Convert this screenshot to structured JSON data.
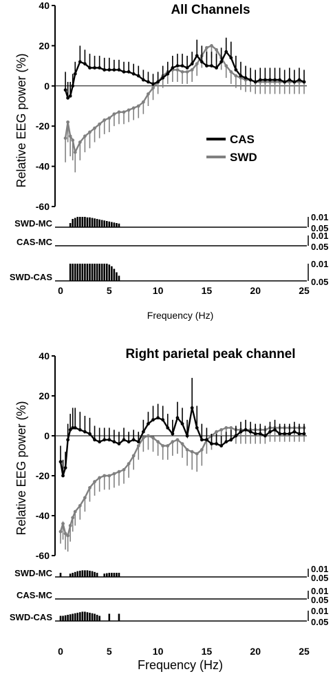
{
  "figure": {
    "background": "#ffffff"
  },
  "chart_data": [
    {
      "type": "line",
      "title": "All Channels",
      "ylabel": "Relative EEG power (%)",
      "xlabel": "Frequency (Hz)",
      "xlim": [
        0,
        25
      ],
      "ylim": [
        -60,
        40
      ],
      "yticks": [
        "40",
        "20",
        "0",
        "-20",
        "-40",
        "-60"
      ],
      "xticks": [
        "0",
        "5",
        "10",
        "15",
        "20",
        "25"
      ],
      "legend": {
        "placement": "center-right",
        "entries": [
          "CAS",
          "SWD"
        ]
      },
      "series": [
        {
          "name": "CAS",
          "color": "#000000",
          "x": [
            0.5,
            0.75,
            1,
            1.25,
            1.5,
            2,
            2.5,
            3,
            3.5,
            4,
            4.5,
            5,
            5.5,
            6,
            6.5,
            7,
            7.5,
            8,
            8.5,
            9,
            9.5,
            10,
            10.5,
            11,
            11.5,
            12,
            12.5,
            13,
            13.5,
            14,
            14.5,
            15,
            15.5,
            16,
            16.5,
            17,
            17.5,
            18,
            18.5,
            19,
            19.5,
            20,
            20.5,
            21,
            21.5,
            22,
            22.5,
            23,
            23.5,
            24,
            24.5,
            25
          ],
          "y": [
            -2,
            -6,
            -5,
            0,
            6,
            12,
            11,
            9,
            9,
            9,
            8,
            8,
            8,
            8,
            7,
            7,
            6,
            5,
            3,
            2,
            1,
            2,
            4,
            6,
            9,
            10,
            10,
            9,
            11,
            15,
            12,
            10,
            10,
            9,
            12,
            17,
            14,
            8,
            5,
            4,
            3,
            2,
            3,
            3,
            3,
            3,
            3,
            2,
            3,
            2,
            3,
            2
          ],
          "err": [
            9,
            8,
            7,
            6,
            6,
            8,
            7,
            7,
            6,
            6,
            6,
            6,
            5,
            5,
            5,
            5,
            5,
            5,
            5,
            5,
            5,
            5,
            6,
            6,
            6,
            6,
            6,
            6,
            6,
            8,
            8,
            7,
            7,
            7,
            7,
            7,
            8,
            7,
            7,
            6,
            6,
            6,
            6,
            6,
            6,
            6,
            6,
            6,
            6,
            6,
            6,
            6
          ]
        },
        {
          "name": "SWD",
          "color": "#808080",
          "x": [
            0.5,
            0.75,
            1,
            1.25,
            1.5,
            2,
            2.5,
            3,
            3.5,
            4,
            4.5,
            5,
            5.5,
            6,
            6.5,
            7,
            7.5,
            8,
            8.5,
            9,
            9.5,
            10,
            10.5,
            11,
            11.5,
            12,
            12.5,
            13,
            13.5,
            14,
            14.5,
            15,
            15.5,
            16,
            16.5,
            17,
            17.5,
            18,
            18.5,
            19,
            19.5,
            20,
            20.5,
            21,
            21.5,
            22,
            22.5,
            23,
            23.5,
            24,
            24.5,
            25
          ],
          "y": [
            -26,
            -18,
            -25,
            -27,
            -33,
            -28,
            -25,
            -23,
            -21,
            -19,
            -17,
            -16,
            -14,
            -13,
            -13,
            -12,
            -11,
            -10,
            -8,
            -4,
            -1,
            2,
            5,
            7,
            8,
            8,
            7,
            7,
            8,
            11,
            15,
            19,
            20,
            18,
            14,
            10,
            7,
            5,
            4,
            3,
            3,
            2,
            2,
            2,
            2,
            2,
            2,
            2,
            2,
            2,
            2,
            2
          ],
          "err": [
            12,
            10,
            10,
            10,
            10,
            9,
            8,
            8,
            7,
            7,
            7,
            7,
            6,
            6,
            6,
            6,
            6,
            6,
            6,
            6,
            6,
            6,
            6,
            6,
            6,
            6,
            6,
            6,
            6,
            6,
            6,
            6,
            6,
            6,
            6,
            6,
            6,
            6,
            6,
            6,
            6,
            6,
            6,
            6,
            6,
            6,
            6,
            6,
            6,
            6,
            6,
            6
          ]
        }
      ],
      "significance": {
        "tick_labels": [
          "0.01",
          "0.05"
        ],
        "rows": [
          {
            "label": "SWD-MC",
            "x": [
              1,
              1.25,
              1.5,
              1.75,
              2,
              2.25,
              2.5,
              2.75,
              3,
              3.25,
              3.5,
              3.75,
              4,
              4.25,
              4.5,
              4.75,
              5,
              5.25,
              5.5,
              5.75,
              6
            ],
            "level": [
              0.4,
              0.8,
              0.9,
              1,
              1,
              1,
              1,
              0.95,
              0.95,
              0.9,
              0.85,
              0.8,
              0.75,
              0.7,
              0.65,
              0.6,
              0.55,
              0.5,
              0.45,
              0.4,
              0.35
            ]
          },
          {
            "label": "CAS-MC",
            "x": [],
            "level": []
          },
          {
            "label": "SWD-CAS",
            "x": [
              1,
              1.25,
              1.5,
              1.75,
              2,
              2.25,
              2.5,
              2.75,
              3,
              3.25,
              3.5,
              3.75,
              4,
              4.25,
              4.5,
              4.75,
              5,
              5.25,
              5.5,
              5.75,
              6
            ],
            "level": [
              1,
              1,
              1,
              1,
              1,
              1,
              1,
              1,
              1,
              1,
              1,
              1,
              1,
              1,
              1,
              1,
              0.95,
              0.85,
              0.7,
              0.5,
              0.3
            ]
          }
        ]
      }
    },
    {
      "type": "line",
      "title": "Right parietal peak channel",
      "ylabel": "Relative EEG power (%)",
      "xlabel": "Frequency (Hz)",
      "xlim": [
        0,
        25
      ],
      "ylim": [
        -60,
        40
      ],
      "yticks": [
        "40",
        "20",
        "0",
        "-20",
        "-40",
        "-60"
      ],
      "xticks": [
        "0",
        "5",
        "10",
        "15",
        "20",
        "25"
      ],
      "series": [
        {
          "name": "CAS",
          "color": "#000000",
          "x": [
            0,
            0.25,
            0.5,
            0.75,
            1,
            1.25,
            1.5,
            2,
            2.5,
            3,
            3.5,
            4,
            4.5,
            5,
            5.5,
            6,
            6.5,
            7,
            7.5,
            8,
            8.5,
            9,
            9.5,
            10,
            10.5,
            11,
            11.5,
            12,
            12.5,
            13,
            13.5,
            14,
            14.5,
            15,
            15.5,
            16,
            16.5,
            17,
            17.5,
            18,
            18.5,
            19,
            19.5,
            20,
            20.5,
            21,
            21.5,
            22,
            22.5,
            23,
            23.5,
            24,
            24.5,
            25
          ],
          "y": [
            -13,
            -20,
            -16,
            -2,
            3,
            4,
            4,
            3,
            2,
            1,
            -2,
            -3,
            -2,
            -2,
            -3,
            -4,
            -2,
            -3,
            -2,
            -3,
            2,
            6,
            8,
            9,
            8,
            4,
            1,
            9,
            6,
            0,
            14,
            4,
            -2,
            -2,
            -4,
            -4,
            -5,
            -3,
            -2,
            0,
            2,
            3,
            2,
            1,
            1,
            0,
            2,
            3,
            1,
            1,
            1,
            2,
            1,
            1
          ],
          "err": [
            8,
            8,
            8,
            8,
            8,
            10,
            10,
            9,
            8,
            8,
            7,
            7,
            6,
            6,
            6,
            6,
            6,
            5,
            5,
            5,
            6,
            6,
            7,
            7,
            7,
            7,
            7,
            8,
            8,
            8,
            15,
            11,
            8,
            6,
            5,
            5,
            5,
            5,
            5,
            5,
            5,
            5,
            5,
            5,
            5,
            5,
            5,
            5,
            5,
            5,
            5,
            5,
            5,
            5
          ]
        },
        {
          "name": "SWD",
          "color": "#808080",
          "x": [
            0,
            0.25,
            0.5,
            0.75,
            1,
            1.25,
            1.5,
            2,
            2.5,
            3,
            3.5,
            4,
            4.5,
            5,
            5.5,
            6,
            6.5,
            7,
            7.5,
            8,
            8.5,
            9,
            9.5,
            10,
            10.5,
            11,
            11.5,
            12,
            12.5,
            13,
            13.5,
            14,
            14.5,
            15,
            15.5,
            16,
            16.5,
            17,
            17.5,
            18,
            18.5,
            19,
            19.5,
            20,
            20.5,
            21,
            21.5,
            22,
            22.5,
            23,
            23.5,
            24,
            24.5,
            25
          ],
          "y": [
            -48,
            -44,
            -49,
            -50,
            -45,
            -41,
            -38,
            -35,
            -31,
            -26,
            -23,
            -21,
            -20,
            -20,
            -19,
            -18,
            -17,
            -14,
            -10,
            -5,
            -1,
            0,
            -1,
            -3,
            -5,
            -5,
            -3,
            -2,
            -4,
            -7,
            -8,
            -9,
            -7,
            -2,
            0,
            2,
            3,
            4,
            4,
            3,
            3,
            3,
            3,
            3,
            3,
            3,
            4,
            4,
            4,
            4,
            4,
            4,
            4,
            4
          ],
          "err": [
            6,
            8,
            8,
            8,
            8,
            7,
            7,
            7,
            7,
            7,
            7,
            7,
            7,
            7,
            7,
            7,
            7,
            7,
            7,
            7,
            7,
            7,
            7,
            7,
            7,
            7,
            7,
            7,
            7,
            8,
            9,
            9,
            8,
            7,
            7,
            7,
            7,
            7,
            7,
            7,
            7,
            7,
            7,
            7,
            7,
            7,
            7,
            7,
            7,
            7,
            7,
            7,
            7,
            7
          ]
        }
      ],
      "significance": {
        "tick_labels": [
          "0.01",
          "0.05"
        ],
        "rows": [
          {
            "label": "SWD-MC",
            "x": [
              0,
              1,
              1.25,
              1.5,
              1.75,
              2,
              2.25,
              2.5,
              2.75,
              3,
              3.25,
              3.5,
              3.75,
              4.5,
              4.75,
              5,
              5.25,
              5.5,
              5.75,
              6
            ],
            "level": [
              0.5,
              0.4,
              0.5,
              0.6,
              0.7,
              0.75,
              0.8,
              0.8,
              0.8,
              0.75,
              0.7,
              0.6,
              0.5,
              0.4,
              0.45,
              0.5,
              0.5,
              0.5,
              0.5,
              0.5
            ]
          },
          {
            "label": "CAS-MC",
            "x": [],
            "level": []
          },
          {
            "label": "SWD-CAS",
            "x": [
              0,
              0.25,
              0.5,
              0.75,
              1,
              1.25,
              1.5,
              1.75,
              2,
              2.25,
              2.5,
              2.75,
              3,
              3.25,
              3.5,
              3.75,
              4,
              5,
              6
            ],
            "level": [
              0.5,
              0.5,
              0.55,
              0.6,
              0.65,
              0.7,
              0.75,
              0.8,
              0.85,
              0.9,
              0.9,
              0.85,
              0.8,
              0.75,
              0.7,
              0.6,
              0.5,
              0.7,
              0.7
            ]
          }
        ]
      }
    }
  ]
}
